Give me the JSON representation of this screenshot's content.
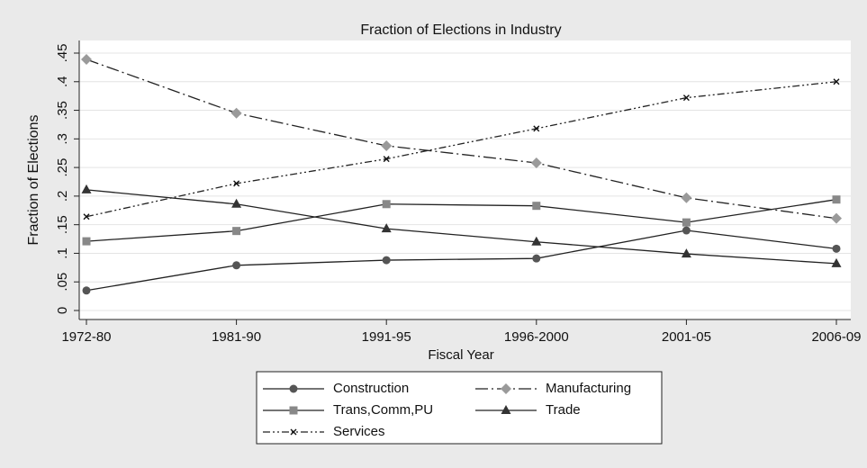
{
  "chart_data": {
    "type": "line",
    "title": "Fraction of Elections in Industry",
    "x_label": "Fiscal Year",
    "y_label": "Fraction of Elections",
    "categories": [
      "1972-80",
      "1981-90",
      "1991-95",
      "1996-2000",
      "2001-05",
      "2006-09"
    ],
    "series": [
      {
        "name": "Construction",
        "color": "#555555",
        "marker": "circle",
        "line_style": "solid",
        "values": [
          0.035,
          0.079,
          0.088,
          0.091,
          0.14,
          0.108
        ]
      },
      {
        "name": "Manufacturing",
        "color": "#9a9a9a",
        "marker": "diamond",
        "line_style": "dash-dot",
        "values": [
          0.439,
          0.345,
          0.288,
          0.258,
          0.197,
          0.161
        ]
      },
      {
        "name": "Trans,Comm,PU",
        "color": "#888888",
        "marker": "square",
        "line_style": "solid",
        "values": [
          0.121,
          0.139,
          0.186,
          0.183,
          0.154,
          0.194
        ]
      },
      {
        "name": "Trade",
        "color": "#333333",
        "marker": "triangle",
        "line_style": "solid",
        "values": [
          0.211,
          0.186,
          0.143,
          0.12,
          0.099,
          0.082
        ]
      },
      {
        "name": "Services",
        "color": "#111111",
        "marker": "x",
        "line_style": "dash-dot-dot",
        "values": [
          0.164,
          0.222,
          0.265,
          0.318,
          0.372,
          0.4
        ]
      }
    ],
    "ylim": [
      0,
      0.45
    ],
    "yticks": [
      0,
      {
        "value": 0.05,
        "label": ".05"
      },
      {
        "value": 0.1,
        "label": ".1"
      },
      {
        "value": 0.15,
        "label": ".15"
      },
      {
        "value": 0.2,
        "label": ".2"
      },
      {
        "value": 0.25,
        "label": ".25"
      },
      {
        "value": 0.3,
        "label": ".3"
      },
      {
        "value": 0.35,
        "label": ".35"
      },
      {
        "value": 0.4,
        "label": ".4"
      },
      {
        "value": 0.45,
        "label": ".45"
      }
    ],
    "grid": true,
    "legend": "bottom"
  }
}
